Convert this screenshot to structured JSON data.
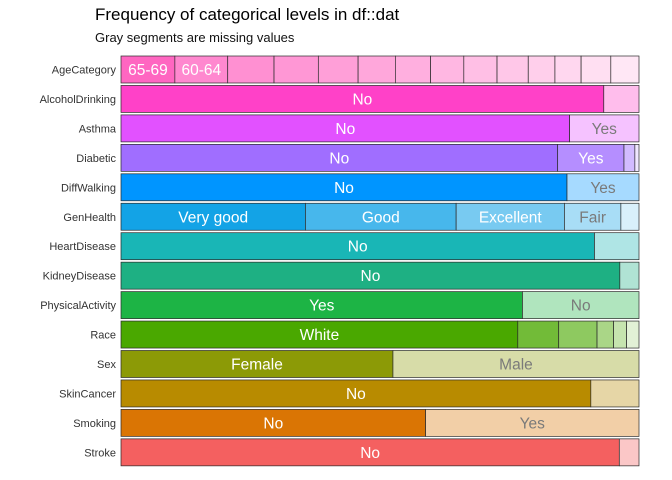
{
  "chart_data": {
    "type": "bar",
    "orientation": "horizontal-stacked-proportion",
    "title": "Frequency of categorical levels in df::dat",
    "subtitle": "Gray segments are missing values",
    "rows": [
      {
        "name": "AgeCategory",
        "color": "#FF66C1",
        "segments": [
          {
            "label": "65-69",
            "value": 0.107
          },
          {
            "label": "60-64",
            "value": 0.105
          },
          {
            "label": "",
            "value": 0.092
          },
          {
            "label": "",
            "value": 0.088
          },
          {
            "label": "",
            "value": 0.079
          },
          {
            "label": "",
            "value": 0.074
          },
          {
            "label": "",
            "value": 0.07
          },
          {
            "label": "",
            "value": 0.066
          },
          {
            "label": "",
            "value": 0.066
          },
          {
            "label": "",
            "value": 0.062
          },
          {
            "label": "",
            "value": 0.053
          },
          {
            "label": "",
            "value": 0.052
          },
          {
            "label": "",
            "value": 0.059
          },
          {
            "label": "",
            "value": 0.056
          }
        ]
      },
      {
        "name": "AlcoholDrinking",
        "color": "#FF41C8",
        "segments": [
          {
            "label": "No",
            "value": 0.932
          },
          {
            "label": "",
            "value": 0.068
          }
        ]
      },
      {
        "name": "Asthma",
        "color": "#E251FF",
        "segments": [
          {
            "label": "No",
            "value": 0.866
          },
          {
            "label": "Yes",
            "value": 0.134
          }
        ]
      },
      {
        "name": "Diabetic",
        "color": "#A06EFF",
        "segments": [
          {
            "label": "No",
            "value": 0.843
          },
          {
            "label": "Yes",
            "value": 0.128
          },
          {
            "label": "",
            "value": 0.021
          },
          {
            "label": "",
            "value": 0.008
          }
        ]
      },
      {
        "name": "DiffWalking",
        "color": "#0095FF",
        "segments": [
          {
            "label": "No",
            "value": 0.861
          },
          {
            "label": "Yes",
            "value": 0.139
          }
        ]
      },
      {
        "name": "GenHealth",
        "color": "#13A3E6",
        "segments": [
          {
            "label": "Very good",
            "value": 0.356
          },
          {
            "label": "Good",
            "value": 0.291
          },
          {
            "label": "Excellent",
            "value": 0.209
          },
          {
            "label": "Fair",
            "value": 0.109
          },
          {
            "label": "",
            "value": 0.035
          }
        ]
      },
      {
        "name": "HeartDisease",
        "color": "#19B6B6",
        "segments": [
          {
            "label": "No",
            "value": 0.914
          },
          {
            "label": "",
            "value": 0.086
          }
        ]
      },
      {
        "name": "KidneyDisease",
        "color": "#1EB083",
        "segments": [
          {
            "label": "No",
            "value": 0.963
          },
          {
            "label": "",
            "value": 0.037
          }
        ]
      },
      {
        "name": "PhysicalActivity",
        "color": "#1DB445",
        "segments": [
          {
            "label": "Yes",
            "value": 0.775
          },
          {
            "label": "No",
            "value": 0.225
          }
        ]
      },
      {
        "name": "Race",
        "color": "#4AA800",
        "segments": [
          {
            "label": "White",
            "value": 0.766
          },
          {
            "label": "",
            "value": 0.079
          },
          {
            "label": "",
            "value": 0.074
          },
          {
            "label": "",
            "value": 0.032
          },
          {
            "label": "",
            "value": 0.025
          },
          {
            "label": "",
            "value": 0.024
          }
        ]
      },
      {
        "name": "Sex",
        "color": "#8C9A06",
        "segments": [
          {
            "label": "Female",
            "value": 0.525
          },
          {
            "label": "Male",
            "value": 0.475
          }
        ]
      },
      {
        "name": "SkinCancer",
        "color": "#B88B00",
        "segments": [
          {
            "label": "No",
            "value": 0.907
          },
          {
            "label": "",
            "value": 0.093
          }
        ]
      },
      {
        "name": "Smoking",
        "color": "#DA7504",
        "segments": [
          {
            "label": "No",
            "value": 0.588
          },
          {
            "label": "Yes",
            "value": 0.412
          }
        ]
      },
      {
        "name": "Stroke",
        "color": "#F46060",
        "segments": [
          {
            "label": "No",
            "value": 0.962
          },
          {
            "label": "",
            "value": 0.038
          }
        ]
      }
    ],
    "xlim": [
      0,
      1
    ],
    "grid": false,
    "legend": "none"
  }
}
